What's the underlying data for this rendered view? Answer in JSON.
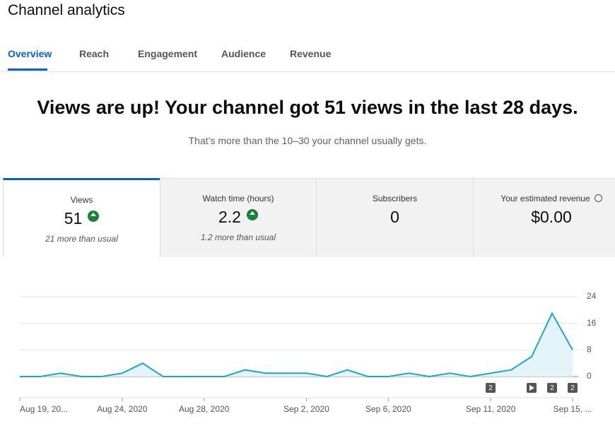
{
  "header": {
    "title": "Channel analytics"
  },
  "tabs": [
    "Overview",
    "Reach",
    "Engagement",
    "Audience",
    "Revenue"
  ],
  "headline": "Views are up! Your channel got 51 views in the last 28 days.",
  "subline": "That’s more than the 10–30 your channel usually gets.",
  "cards": [
    {
      "label": "Views",
      "value": "51",
      "note": "21 more than usual"
    },
    {
      "label": "Watch time (hours)",
      "value": "2.2",
      "note": "1.2 more than usual"
    },
    {
      "label": "Subscribers",
      "value": "0"
    },
    {
      "label": "Your estimated revenue",
      "value": "$0.00"
    }
  ],
  "chart_data": {
    "type": "line",
    "categories": [
      "Aug 19, 20...",
      null,
      null,
      null,
      null,
      "Aug 24, 2020",
      null,
      null,
      null,
      "Aug 28, 2020",
      null,
      null,
      null,
      null,
      "Sep 2, 2020",
      null,
      null,
      null,
      "Sep 6, 2020",
      null,
      null,
      null,
      null,
      "Sep 11, 2020",
      null,
      null,
      null,
      "Sep 15, ..."
    ],
    "values": [
      0,
      0,
      1,
      0,
      0,
      1,
      4,
      0,
      0,
      0,
      0,
      2,
      1,
      1,
      1,
      0,
      2,
      0,
      0,
      1,
      0,
      1,
      0,
      1,
      2,
      6,
      19,
      8
    ],
    "color": "#1ea5c9",
    "ylim": [
      0,
      24
    ],
    "yticks": [
      0,
      8,
      16,
      24
    ],
    "grid": true,
    "markers": [
      "2",
      "2",
      "2"
    ]
  }
}
